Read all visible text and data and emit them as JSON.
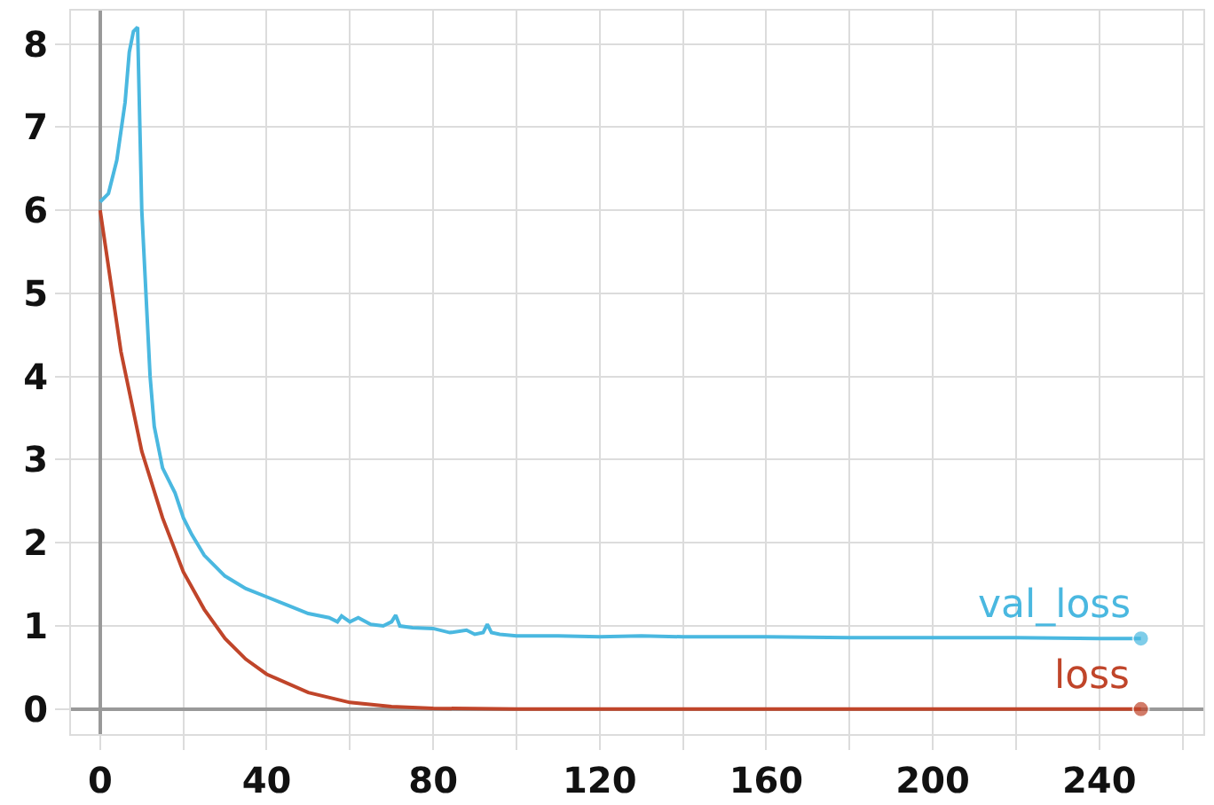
{
  "chart_data": {
    "type": "line",
    "xlim": [
      -7,
      265
    ],
    "ylim": [
      -0.3,
      8.4
    ],
    "xticks": [
      0,
      {
        "value": 20,
        "label": null
      },
      40,
      {
        "value": 60,
        "label": null
      },
      80,
      {
        "value": 100,
        "label": null
      },
      120,
      {
        "value": 140,
        "label": null
      },
      160,
      {
        "value": 180,
        "label": null
      },
      200,
      {
        "value": 220,
        "label": null
      },
      240,
      {
        "value": 260,
        "label": null
      }
    ],
    "yticks": [
      0,
      1,
      2,
      3,
      4,
      5,
      6,
      7,
      8
    ],
    "grid": true,
    "legend": false,
    "series": [
      {
        "name": "val_loss",
        "color": "#4ab8e0",
        "x": [
          0,
          2,
          4,
          6,
          7,
          8,
          9,
          10,
          12,
          13,
          15,
          18,
          20,
          22,
          25,
          30,
          35,
          40,
          45,
          50,
          55,
          57,
          58,
          60,
          62,
          65,
          68,
          70,
          71,
          72,
          75,
          80,
          84,
          88,
          90,
          92,
          93,
          94,
          96,
          100,
          110,
          120,
          130,
          140,
          160,
          180,
          200,
          220,
          240,
          250
        ],
        "values": [
          6.1,
          6.2,
          6.6,
          7.3,
          7.9,
          8.15,
          8.2,
          6.0,
          4.0,
          3.4,
          2.9,
          2.6,
          2.3,
          2.1,
          1.85,
          1.6,
          1.45,
          1.35,
          1.25,
          1.15,
          1.1,
          1.05,
          1.12,
          1.05,
          1.1,
          1.02,
          1.0,
          1.05,
          1.13,
          1.0,
          0.98,
          0.97,
          0.92,
          0.95,
          0.9,
          0.92,
          1.02,
          0.92,
          0.9,
          0.88,
          0.88,
          0.87,
          0.88,
          0.87,
          0.87,
          0.86,
          0.86,
          0.86,
          0.85,
          0.85
        ]
      },
      {
        "name": "loss",
        "color": "#c0452a",
        "x": [
          0,
          5,
          10,
          15,
          20,
          25,
          30,
          35,
          40,
          50,
          60,
          70,
          80,
          100,
          150,
          200,
          250
        ],
        "values": [
          6.0,
          4.3,
          3.1,
          2.3,
          1.65,
          1.2,
          0.85,
          0.6,
          0.42,
          0.2,
          0.08,
          0.03,
          0.01,
          0,
          0,
          0,
          0
        ]
      }
    ]
  }
}
